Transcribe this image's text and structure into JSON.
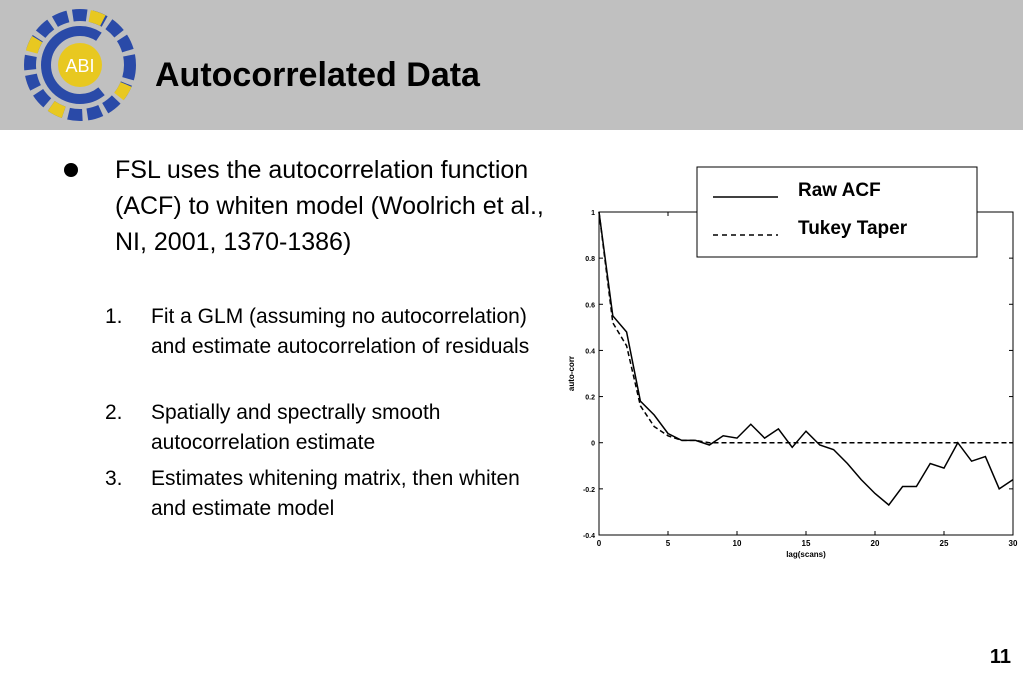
{
  "header": {
    "title": "Autocorrelated Data",
    "logo_text": "ABI"
  },
  "bullet": {
    "text": "FSL uses the autocorrelation function (ACF) to whiten model (Woolrich et al., NI, 2001, 1370-1386)",
    "steps": [
      {
        "number": "1.",
        "text": "Fit a GLM (assuming no autocorrelation) and estimate autocorrelation of residuals"
      },
      {
        "number": "2.",
        "text": "Spatially and spectrally smooth autocorrelation estimate"
      },
      {
        "number": "3.",
        "text": "Estimates whitening matrix, then whiten and estimate model"
      }
    ]
  },
  "page_number": "11",
  "chart_data": {
    "type": "line",
    "x_label": "lag(scans)",
    "y_label": "auto-corr",
    "x": [
      0,
      1,
      2,
      3,
      4,
      5,
      6,
      7,
      8,
      9,
      10,
      11,
      12,
      13,
      14,
      15,
      16,
      17,
      18,
      19,
      20,
      21,
      22,
      23,
      24,
      25,
      26,
      27,
      28,
      29,
      30
    ],
    "series": [
      {
        "name": "Raw ACF",
        "color": "#000000",
        "style": "solid",
        "values": [
          1,
          0.55,
          0.48,
          0.18,
          0.12,
          0.04,
          0.01,
          0.01,
          -0.01,
          0.03,
          0.02,
          0.08,
          0.02,
          0.06,
          -0.02,
          0.05,
          -0.01,
          -0.03,
          -0.09,
          -0.16,
          -0.22,
          -0.27,
          -0.19,
          -0.19,
          -0.09,
          -0.11,
          0,
          -0.08,
          -0.06,
          -0.2,
          -0.16
        ]
      },
      {
        "name": "Tukey Taper",
        "color": "#000000",
        "style": "dashed",
        "values": [
          1,
          0.52,
          0.42,
          0.16,
          0.07,
          0.03,
          0.01,
          0.01,
          0,
          0,
          0,
          0,
          0,
          0,
          0,
          0,
          0,
          0,
          0,
          0,
          0,
          0,
          0,
          0,
          0,
          0,
          0,
          0,
          0,
          0,
          0
        ]
      }
    ],
    "xlim": [
      0,
      30
    ],
    "xticks": [
      0,
      5,
      10,
      15,
      20,
      25,
      30
    ],
    "ylim": [
      -0.4,
      1
    ],
    "yticks": [
      -0.4,
      -0.2,
      0,
      0.2,
      0.4,
      0.6,
      0.8,
      1
    ]
  }
}
